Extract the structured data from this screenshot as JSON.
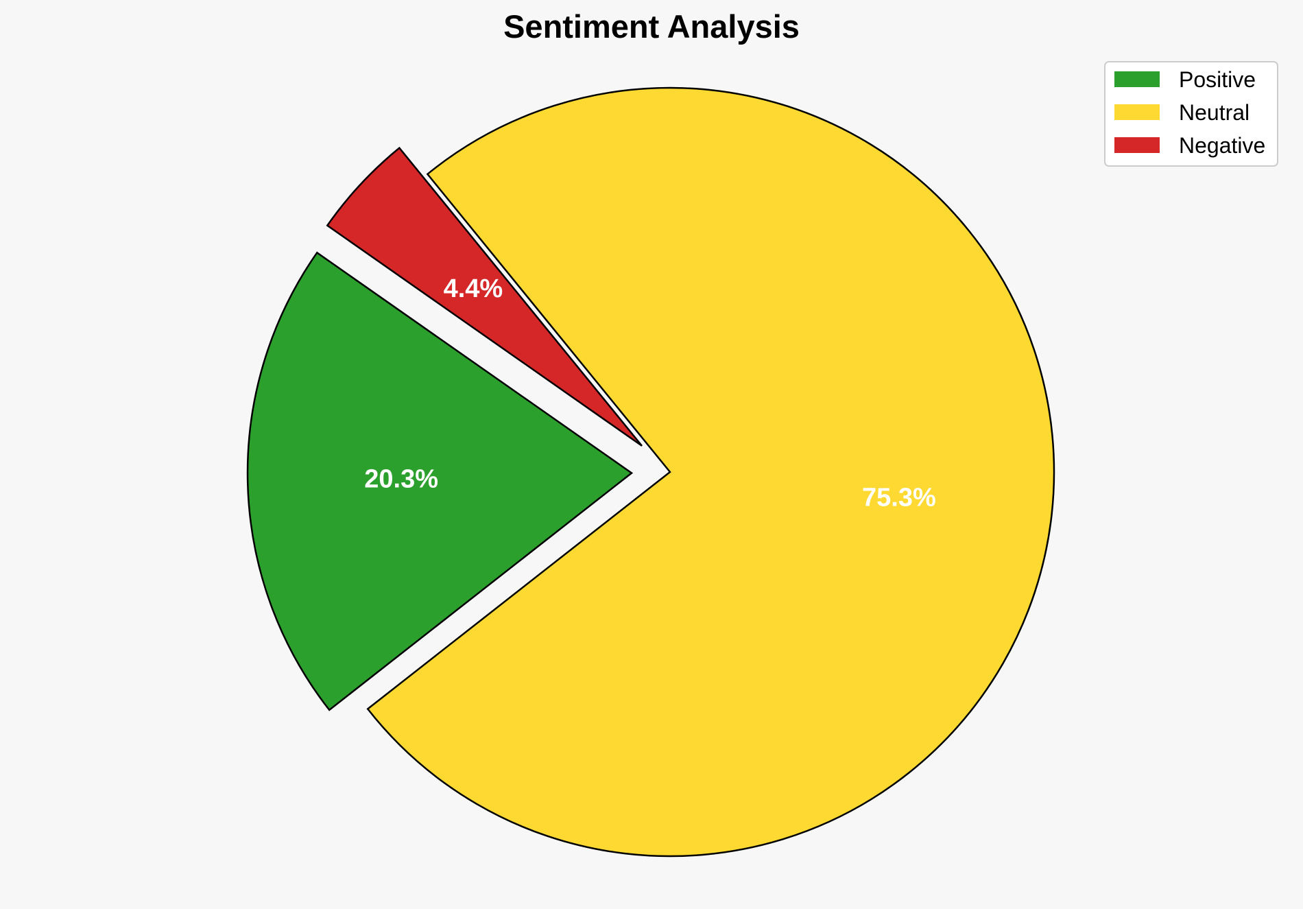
{
  "chart_data": {
    "type": "pie",
    "title": "Sentiment Analysis",
    "start_angle_deg": 145,
    "direction": "counterclockwise",
    "legend_position": "top-right",
    "slices": [
      {
        "label": "Positive",
        "value": 20.3,
        "value_label": "20.3%",
        "color": "#2ca02c",
        "exploded": true
      },
      {
        "label": "Neutral",
        "value": 75.3,
        "value_label": "75.3%",
        "color": "#fdd931",
        "exploded": false
      },
      {
        "label": "Negative",
        "value": 4.4,
        "value_label": "4.4%",
        "color": "#d62728",
        "exploded": true
      }
    ]
  }
}
